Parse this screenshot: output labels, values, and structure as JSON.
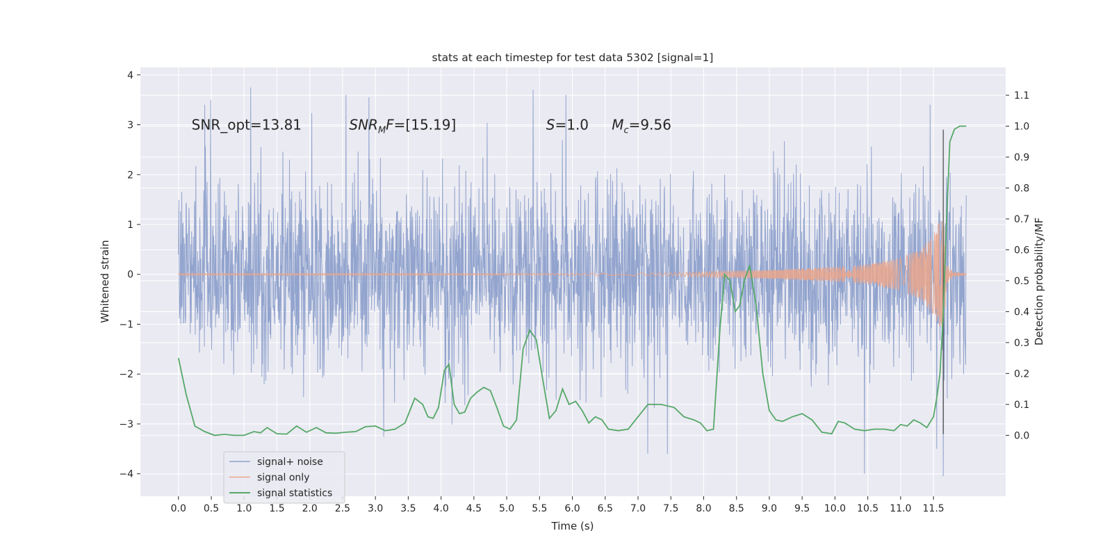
{
  "chart_data": {
    "type": "line",
    "title": "stats at each timestep for test data 5302 [signal=1]",
    "xlabel": "Time (s)",
    "ylabel": "Whitened strain",
    "y2label": "Detection probability/MF",
    "xlim": [
      -0.58,
      12.6
    ],
    "ylim": [
      -4.45,
      4.15
    ],
    "y2lim": [
      -0.197,
      1.19
    ],
    "x_ticks": [
      0.0,
      0.5,
      1.0,
      1.5,
      2.0,
      2.5,
      3.0,
      3.5,
      4.0,
      4.5,
      5.0,
      5.5,
      6.0,
      6.5,
      7.0,
      7.5,
      8.0,
      8.5,
      9.0,
      9.5,
      10.0,
      10.5,
      11.0,
      11.5
    ],
    "x_tick_labels": [
      "0.0",
      "0.5",
      "1.0",
      "1.5",
      "2.0",
      "2.5",
      "3.0",
      "3.5",
      "4.0",
      "4.5",
      "5.0",
      "5.5",
      "6.0",
      "6.5",
      "7.0",
      "7.5",
      "8.0",
      "8.5",
      "9.0",
      "9.5",
      "10.0",
      "10.5",
      "11.0",
      "11.5"
    ],
    "y_ticks": [
      -4,
      -3,
      -2,
      -1,
      0,
      1,
      2,
      3,
      4
    ],
    "y_tick_labels": [
      "−4",
      "−3",
      "−2",
      "−1",
      "0",
      "1",
      "2",
      "3",
      "4"
    ],
    "y2_ticks": [
      0.0,
      0.1,
      0.2,
      0.3,
      0.4,
      0.5,
      0.6,
      0.7,
      0.8,
      0.9,
      1.0,
      1.1
    ],
    "y2_tick_labels": [
      "0.0",
      "0.1",
      "0.2",
      "0.3",
      "0.4",
      "0.5",
      "0.6",
      "0.7",
      "0.8",
      "0.9",
      "1.0",
      "1.1"
    ],
    "grid": true,
    "legend_position": "lower-left",
    "annotations": [
      {
        "text": "SNR_opt=13.81",
        "x": 0.2,
        "y": 2.9
      },
      {
        "html": "<tspan font-style=\"italic\">SNR</tspan><tspan font-style=\"italic\" font-size=\"13\" dy=\"5\">M</tspan><tspan font-style=\"italic\" dy=\"-5\">F</tspan><tspan>=[15.19]</tspan>",
        "text": "SNR_MF=[15.19]",
        "x": 2.6,
        "y": 2.9
      },
      {
        "html": "<tspan font-style=\"italic\">S</tspan><tspan>=1.0</tspan>",
        "text": "S=1.0",
        "x": 5.6,
        "y": 2.9
      },
      {
        "html": "<tspan font-style=\"italic\">M</tspan><tspan font-style=\"italic\" font-size=\"13\" dy=\"5\">c</tspan><tspan dy=\"-5\">=9.56</tspan>",
        "text": "Mc=9.56",
        "x": 6.6,
        "y": 2.9
      }
    ],
    "series": [
      {
        "name": "signal+ noise",
        "color": "#8da0cb",
        "axis": "left",
        "t_start": 0.0,
        "t_end": 12.0,
        "envelope_std": 0.95,
        "peaks": [
          {
            "x": 1.1,
            "y": 3.75
          },
          {
            "x": 2.55,
            "y": 3.6
          },
          {
            "x": 2.9,
            "y": 3.55
          },
          {
            "x": 5.4,
            "y": 3.7
          },
          {
            "x": 5.9,
            "y": 3.6
          },
          {
            "x": 11.45,
            "y": 3.4
          },
          {
            "x": 0.4,
            "y": 3.4
          },
          {
            "x": 7.15,
            "y": -3.6
          },
          {
            "x": 7.45,
            "y": -3.6
          },
          {
            "x": 10.45,
            "y": -4.0
          },
          {
            "x": 11.65,
            "y": -4.05
          },
          {
            "x": 11.55,
            "y": -3.5
          }
        ]
      },
      {
        "name": "signal only",
        "color": "#e9a68c",
        "axis": "left",
        "description": "chirp waveform growing in amplitude until merger near 11.65 s",
        "envelope": [
          [
            0.0,
            0.01
          ],
          [
            6.0,
            0.02
          ],
          [
            7.5,
            0.03
          ],
          [
            8.0,
            0.05
          ],
          [
            9.0,
            0.09
          ],
          [
            10.0,
            0.15
          ],
          [
            10.5,
            0.2
          ],
          [
            11.0,
            0.33
          ],
          [
            11.3,
            0.5
          ],
          [
            11.5,
            0.8
          ],
          [
            11.6,
            1.1
          ],
          [
            11.65,
            1.2
          ],
          [
            11.7,
            0.2
          ],
          [
            11.8,
            0.05
          ],
          [
            12.0,
            0.02
          ]
        ]
      },
      {
        "name": "signal statistics",
        "color": "#55a868",
        "axis": "right",
        "x": [
          0.0,
          0.12,
          0.25,
          0.4,
          0.55,
          0.7,
          0.85,
          1.0,
          1.15,
          1.25,
          1.35,
          1.5,
          1.65,
          1.8,
          1.95,
          2.1,
          2.25,
          2.4,
          2.55,
          2.7,
          2.85,
          3.0,
          3.15,
          3.3,
          3.45,
          3.6,
          3.72,
          3.8,
          3.88,
          3.96,
          4.05,
          4.12,
          4.2,
          4.28,
          4.36,
          4.45,
          4.55,
          4.65,
          4.75,
          4.85,
          4.95,
          5.05,
          5.15,
          5.25,
          5.35,
          5.45,
          5.55,
          5.65,
          5.75,
          5.85,
          5.95,
          6.05,
          6.15,
          6.25,
          6.35,
          6.45,
          6.55,
          6.7,
          6.85,
          7.0,
          7.15,
          7.35,
          7.55,
          7.7,
          7.85,
          7.95,
          8.05,
          8.15,
          8.25,
          8.32,
          8.4,
          8.48,
          8.55,
          8.62,
          8.7,
          8.8,
          8.9,
          9.0,
          9.1,
          9.2,
          9.35,
          9.5,
          9.65,
          9.8,
          9.95,
          10.05,
          10.15,
          10.3,
          10.45,
          10.6,
          10.75,
          10.9,
          11.0,
          11.1,
          11.2,
          11.3,
          11.4,
          11.5,
          11.55,
          11.6,
          11.65,
          11.7,
          11.75,
          11.82,
          11.9,
          12.0
        ],
        "values": [
          0.25,
          0.13,
          0.03,
          0.012,
          0.0,
          0.003,
          0.0,
          0.0,
          0.012,
          0.008,
          0.025,
          0.005,
          0.004,
          0.03,
          0.01,
          0.025,
          0.008,
          0.007,
          0.01,
          0.012,
          0.028,
          0.03,
          0.015,
          0.02,
          0.04,
          0.12,
          0.1,
          0.06,
          0.055,
          0.09,
          0.21,
          0.23,
          0.1,
          0.07,
          0.075,
          0.12,
          0.14,
          0.155,
          0.145,
          0.09,
          0.03,
          0.02,
          0.05,
          0.28,
          0.34,
          0.31,
          0.18,
          0.055,
          0.08,
          0.15,
          0.1,
          0.11,
          0.08,
          0.04,
          0.06,
          0.05,
          0.02,
          0.015,
          0.02,
          0.06,
          0.1,
          0.1,
          0.09,
          0.06,
          0.05,
          0.04,
          0.015,
          0.02,
          0.35,
          0.52,
          0.5,
          0.4,
          0.42,
          0.5,
          0.55,
          0.42,
          0.2,
          0.08,
          0.05,
          0.045,
          0.06,
          0.07,
          0.05,
          0.01,
          0.005,
          0.045,
          0.04,
          0.02,
          0.015,
          0.02,
          0.02,
          0.015,
          0.035,
          0.03,
          0.05,
          0.04,
          0.025,
          0.06,
          0.12,
          0.2,
          0.4,
          0.7,
          0.95,
          0.99,
          1.0,
          1.0
        ]
      }
    ]
  }
}
